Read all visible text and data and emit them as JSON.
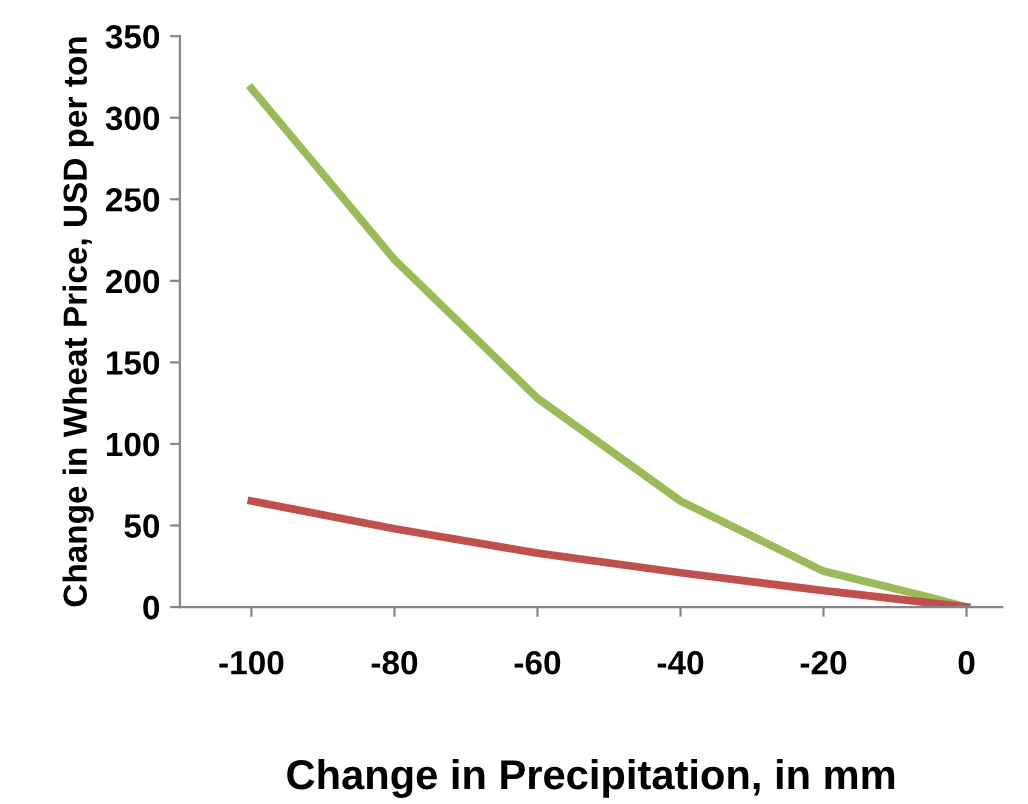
{
  "chart_data": {
    "type": "line",
    "xlabel": "Change in Precipitation, in mm",
    "ylabel": "Change in Wheat Price, USD per ton",
    "xlim": [
      -110,
      5
    ],
    "xticks": [
      -100,
      -80,
      -60,
      -40,
      -20,
      0
    ],
    "ylim": [
      0,
      350
    ],
    "yticks": [
      0,
      50,
      100,
      150,
      200,
      250,
      300,
      350
    ],
    "grid": false,
    "legend": false,
    "marker": "none",
    "line_style": "solid",
    "series": [
      {
        "color": "#9bbb59",
        "x": [
          -100,
          -80,
          -60,
          -40,
          -20,
          -7,
          0
        ],
        "values": [
          318,
          213,
          128,
          65,
          22,
          8,
          0
        ]
      },
      {
        "color": "#c0504d",
        "x": [
          -100,
          -80,
          -60,
          -40,
          -20,
          0
        ],
        "values": [
          65,
          48,
          33,
          21,
          10,
          0
        ]
      }
    ]
  }
}
